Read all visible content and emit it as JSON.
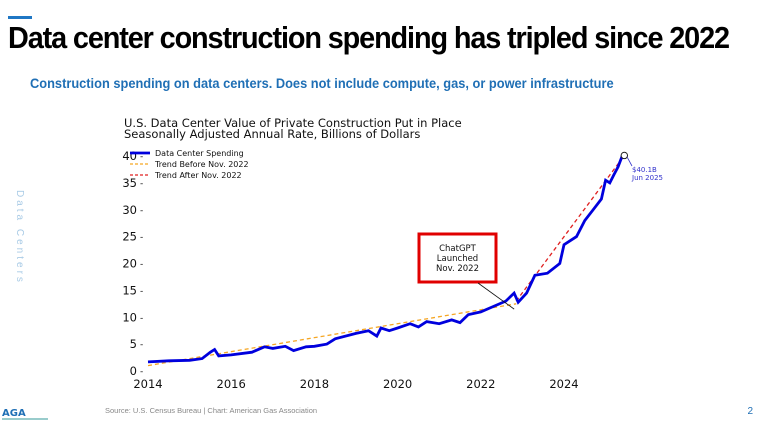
{
  "slide": {
    "title": "Data center construction spending has tripled since 2022",
    "subtitle": "Construction spending on data centers. Does not include compute, gas, or power infrastructure",
    "side_label": "Data Centers",
    "source": "Source: U.S. Census Bureau | Chart: American Gas Association",
    "page_number": "2",
    "logo_text": "AGA",
    "accent_color": "#1f77c4"
  },
  "chart_data": {
    "type": "line",
    "title": "U.S. Data Center Value of Private Construction Put in Place",
    "subtitle": "Seasonally Adjusted Annual Rate, Billions of Dollars",
    "xlim": [
      2013.8,
      2025.9
    ],
    "ylim": [
      0,
      41
    ],
    "x_ticks": [
      "2014",
      "2016",
      "2018",
      "2020",
      "2022",
      "2024"
    ],
    "y_ticks": [
      "0",
      "5",
      "10",
      "15",
      "20",
      "25",
      "30",
      "35",
      "40"
    ],
    "grid": false,
    "legend_position": "top-left",
    "series": [
      {
        "name": "Data Center Spending",
        "color": "#0000dd",
        "style": "solid",
        "x": [
          2014.0,
          2014.5,
          2015.0,
          2015.3,
          2015.5,
          2015.6,
          2015.7,
          2016.0,
          2016.5,
          2016.8,
          2017.0,
          2017.3,
          2017.5,
          2017.8,
          2018.0,
          2018.3,
          2018.5,
          2019.0,
          2019.3,
          2019.5,
          2019.6,
          2019.8,
          2020.0,
          2020.3,
          2020.5,
          2020.7,
          2021.0,
          2021.3,
          2021.5,
          2021.7,
          2022.0,
          2022.3,
          2022.6,
          2022.8,
          2022.9,
          2023.1,
          2023.3,
          2023.6,
          2023.9,
          2024.0,
          2024.3,
          2024.5,
          2024.7,
          2024.9,
          2025.0,
          2025.1,
          2025.2,
          2025.3,
          2025.4,
          2025.45
        ],
        "y": [
          1.7,
          1.9,
          2.0,
          2.3,
          3.5,
          4.0,
          2.8,
          3.0,
          3.5,
          4.5,
          4.2,
          4.6,
          3.8,
          4.5,
          4.6,
          5.0,
          6.0,
          7.0,
          7.5,
          6.5,
          8.0,
          7.5,
          8.0,
          8.8,
          8.2,
          9.2,
          8.8,
          9.5,
          9.0,
          10.5,
          11.0,
          12.0,
          13.0,
          14.5,
          12.8,
          14.5,
          17.8,
          18.2,
          20.0,
          23.5,
          25.0,
          28.0,
          30.0,
          32.0,
          35.5,
          35.0,
          36.5,
          38.0,
          40.0,
          40.1
        ]
      },
      {
        "name": "Trend Before Nov. 2022",
        "color": "#f5a623",
        "style": "dashed",
        "x": [
          2014.0,
          2022.85
        ],
        "y": [
          1.0,
          12.5
        ]
      },
      {
        "name": "Trend After Nov. 2022",
        "color": "#e02020",
        "style": "dashed",
        "x": [
          2022.85,
          2025.45
        ],
        "y": [
          13.0,
          40.1
        ]
      }
    ],
    "annotations": [
      {
        "text": "$40.1B",
        "text2": "Jun 2025",
        "x": 2025.45,
        "y": 40.1,
        "color": "#3333cc"
      },
      {
        "lines": [
          "ChatGPT",
          "Launched",
          "Nov. 2022"
        ],
        "x": 2022.85,
        "y": 13.0,
        "box_color": "#e00000"
      }
    ]
  }
}
